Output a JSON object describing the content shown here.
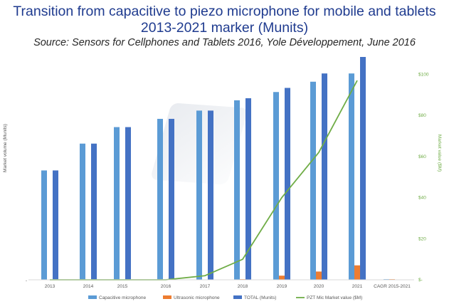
{
  "header": {
    "title_line1": "Transition from capacitive to piezo microphone for mobile and tablets",
    "title_line2": "2013-2021 marker (Munits)",
    "source": "Source: Sensors for Cellphones and Tablets 2016, Yole Développement, June 2016"
  },
  "chart_data": {
    "type": "bar",
    "categories": [
      "2013",
      "2014",
      "2015",
      "2016",
      "2017",
      "2018",
      "2019",
      "2020",
      "2021",
      "CAGR 2015-2021"
    ],
    "series": [
      {
        "name": "Capacitive microphone",
        "type": "bar",
        "color": "#5b9bd5",
        "values": [
          53,
          66,
          74,
          78,
          82,
          87,
          91,
          96,
          100,
          0.3
        ]
      },
      {
        "name": "Ultrasonic microphone",
        "type": "bar",
        "color": "#ed7d31",
        "values": [
          0,
          0,
          0,
          0,
          0,
          0.3,
          2,
          4,
          7,
          0.3
        ]
      },
      {
        "name": "TOTAL (Munits)",
        "type": "bar",
        "color": "#4472c4",
        "values": [
          53,
          66,
          74,
          78,
          82,
          88,
          93,
          100,
          108,
          null
        ]
      },
      {
        "name": "PZT Mic Market value ($M)",
        "type": "line",
        "axis": "right",
        "color": "#70ad47",
        "values": [
          0,
          0,
          0,
          0,
          2,
          10,
          40,
          62,
          97,
          null
        ]
      }
    ],
    "ylabel": "Market volume (Munits)",
    "ylabel_right": "Market value ($M)",
    "ylim": [
      0,
      108
    ],
    "y2lim": [
      0,
      105
    ],
    "y2_ticks": [
      "$-",
      "$20",
      "$40",
      "$60",
      "$80",
      "$100"
    ],
    "y2_tick_values": [
      0,
      20,
      40,
      60,
      80,
      100
    ],
    "legend_position": "bottom",
    "grid": false
  }
}
